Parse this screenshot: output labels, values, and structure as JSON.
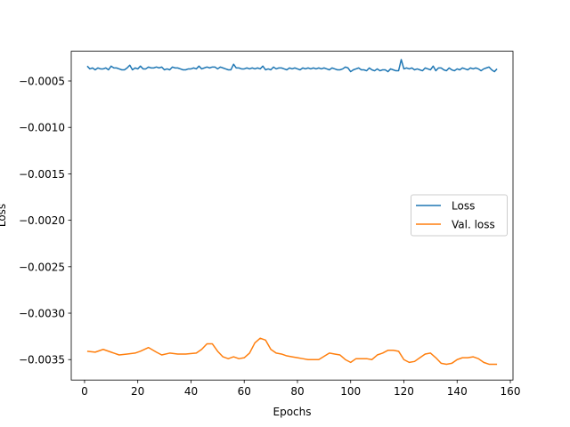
{
  "chart_data": {
    "type": "line",
    "xlabel": "Epochs",
    "ylabel": "Loss",
    "xlim": [
      -5,
      161
    ],
    "ylim": [
      -0.00372,
      -0.00018
    ],
    "xticks": [
      0,
      20,
      40,
      60,
      80,
      100,
      120,
      140,
      160
    ],
    "yticks": [
      -0.0005,
      -0.001,
      -0.0015,
      -0.002,
      -0.0025,
      -0.003,
      -0.0035
    ],
    "ytick_labels": [
      "−0.0005",
      "−0.0010",
      "−0.0015",
      "−0.0020",
      "−0.0025",
      "−0.0030",
      "−0.0035"
    ],
    "grid": false,
    "legend_position": "center-right",
    "series": [
      {
        "name": "Loss",
        "color": "#1f77b4",
        "x": [
          1,
          2,
          3,
          4,
          5,
          6,
          7,
          8,
          9,
          10,
          11,
          12,
          13,
          14,
          15,
          16,
          17,
          18,
          19,
          20,
          21,
          22,
          23,
          24,
          25,
          26,
          27,
          28,
          29,
          30,
          31,
          32,
          33,
          34,
          35,
          36,
          37,
          38,
          39,
          40,
          41,
          42,
          43,
          44,
          45,
          46,
          47,
          48,
          49,
          50,
          51,
          52,
          53,
          54,
          55,
          56,
          57,
          58,
          59,
          60,
          61,
          62,
          63,
          64,
          65,
          66,
          67,
          68,
          69,
          70,
          71,
          72,
          73,
          74,
          75,
          76,
          77,
          78,
          79,
          80,
          81,
          82,
          83,
          84,
          85,
          86,
          87,
          88,
          89,
          90,
          91,
          92,
          93,
          94,
          95,
          96,
          97,
          98,
          99,
          100,
          101,
          102,
          103,
          104,
          105,
          106,
          107,
          108,
          109,
          110,
          111,
          112,
          113,
          114,
          115,
          116,
          117,
          118,
          119,
          120,
          121,
          122,
          123,
          124,
          125,
          126,
          127,
          128,
          129,
          130,
          131,
          132,
          133,
          134,
          135,
          136,
          137,
          138,
          139,
          140,
          141,
          142,
          143,
          144,
          145,
          146,
          147,
          148,
          149,
          150,
          151,
          152,
          153,
          154,
          155
        ],
        "y": [
          -0.00034,
          -0.00037,
          -0.00036,
          -0.00038,
          -0.00036,
          -0.00037,
          -0.00037,
          -0.00036,
          -0.00038,
          -0.00034,
          -0.00036,
          -0.00036,
          -0.00037,
          -0.00038,
          -0.00038,
          -0.00036,
          -0.00033,
          -0.00038,
          -0.00036,
          -0.00037,
          -0.00034,
          -0.00037,
          -0.00037,
          -0.00035,
          -0.00036,
          -0.00036,
          -0.00035,
          -0.00036,
          -0.00035,
          -0.00038,
          -0.00037,
          -0.00038,
          -0.00035,
          -0.00036,
          -0.00036,
          -0.00037,
          -0.00038,
          -0.00038,
          -0.00037,
          -0.00037,
          -0.00036,
          -0.00037,
          -0.00034,
          -0.00037,
          -0.00036,
          -0.00035,
          -0.00036,
          -0.00035,
          -0.00035,
          -0.00037,
          -0.00035,
          -0.00036,
          -0.00037,
          -0.00038,
          -0.00038,
          -0.00032,
          -0.00036,
          -0.00036,
          -0.00037,
          -0.00037,
          -0.00036,
          -0.00037,
          -0.00036,
          -0.00037,
          -0.00036,
          -0.00037,
          -0.00034,
          -0.00038,
          -0.00037,
          -0.00038,
          -0.00035,
          -0.00037,
          -0.00036,
          -0.00036,
          -0.00037,
          -0.00038,
          -0.00036,
          -0.00037,
          -0.00036,
          -0.00037,
          -0.00038,
          -0.00036,
          -0.00037,
          -0.00036,
          -0.00037,
          -0.00036,
          -0.00037,
          -0.00036,
          -0.00037,
          -0.00036,
          -0.00037,
          -0.00038,
          -0.00036,
          -0.00037,
          -0.00038,
          -0.00038,
          -0.00037,
          -0.00035,
          -0.00036,
          -0.0004,
          -0.00038,
          -0.00037,
          -0.00036,
          -0.00038,
          -0.00038,
          -0.00039,
          -0.00036,
          -0.00038,
          -0.00039,
          -0.00037,
          -0.00039,
          -0.00038,
          -0.00038,
          -0.0004,
          -0.00037,
          -0.00038,
          -0.00039,
          -0.00039,
          -0.00027,
          -0.00037,
          -0.00036,
          -0.00037,
          -0.00036,
          -0.00038,
          -0.00037,
          -0.00038,
          -0.00039,
          -0.00036,
          -0.00037,
          -0.00038,
          -0.00034,
          -0.00039,
          -0.00036,
          -0.00036,
          -0.00038,
          -0.00039,
          -0.00036,
          -0.00038,
          -0.00039,
          -0.00037,
          -0.00038,
          -0.00036,
          -0.00037,
          -0.00038,
          -0.00036,
          -0.00037,
          -0.00036,
          -0.00037,
          -0.00039,
          -0.00037,
          -0.00036,
          -0.00035,
          -0.00038,
          -0.0004,
          -0.00037
        ]
      },
      {
        "name": "Val. loss",
        "color": "#ff7f0e",
        "x": [
          1,
          4,
          7,
          10,
          13,
          16,
          19,
          21,
          24,
          27,
          29,
          32,
          35,
          38,
          42,
          44,
          46,
          48,
          50,
          52,
          54,
          56,
          58,
          60,
          62,
          64,
          66,
          68,
          70,
          72,
          74,
          76,
          78,
          80,
          82,
          84,
          86,
          88,
          92,
          94,
          96,
          98,
          100,
          102,
          104,
          106,
          108,
          110,
          112,
          114,
          116,
          118,
          120,
          122,
          124,
          126,
          128,
          130,
          132,
          134,
          136,
          138,
          140,
          142,
          144,
          146,
          148,
          150,
          152,
          155
        ],
        "y": [
          -0.00341,
          -0.00342,
          -0.00339,
          -0.00342,
          -0.00345,
          -0.00344,
          -0.00343,
          -0.00341,
          -0.00337,
          -0.00342,
          -0.00345,
          -0.00343,
          -0.00344,
          -0.00344,
          -0.00343,
          -0.00339,
          -0.00333,
          -0.00333,
          -0.00341,
          -0.00347,
          -0.00349,
          -0.00347,
          -0.00349,
          -0.00348,
          -0.00343,
          -0.00332,
          -0.00327,
          -0.00329,
          -0.00339,
          -0.00343,
          -0.00344,
          -0.00346,
          -0.00347,
          -0.00348,
          -0.00349,
          -0.0035,
          -0.0035,
          -0.0035,
          -0.00343,
          -0.00344,
          -0.00345,
          -0.0035,
          -0.00353,
          -0.00349,
          -0.00349,
          -0.00349,
          -0.0035,
          -0.00345,
          -0.00343,
          -0.0034,
          -0.0034,
          -0.00341,
          -0.0035,
          -0.00353,
          -0.00352,
          -0.00348,
          -0.00344,
          -0.00343,
          -0.00348,
          -0.00354,
          -0.00355,
          -0.00354,
          -0.0035,
          -0.00348,
          -0.00348,
          -0.00347,
          -0.00349,
          -0.00353,
          -0.00355,
          -0.00355
        ]
      }
    ]
  }
}
